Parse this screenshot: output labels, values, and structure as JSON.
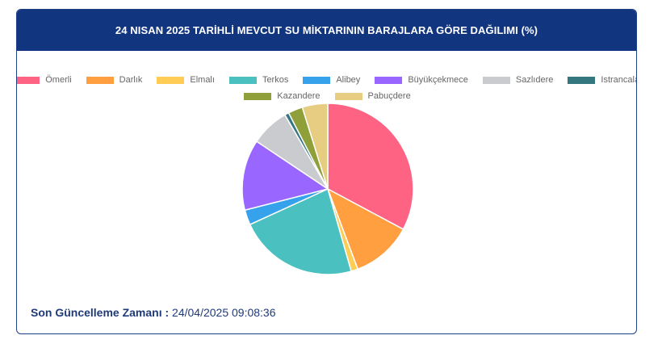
{
  "card": {
    "title": "24 NISAN 2025 TARİHLİ MEVCUT SU MİKTARININ BARAJLARA GÖRE DAĞILIMI (%)"
  },
  "chart_data": {
    "type": "pie",
    "title": "24 NISAN 2025 TARİHLİ MEVCUT SU MİKTARININ BARAJLARA GÖRE DAĞILIMI (%)",
    "legend_position": "top",
    "categories": [
      "Ömerli",
      "Darlık",
      "Elmalı",
      "Terkos",
      "Alibey",
      "Büyükçekmece",
      "Sazlıdere",
      "Istrancalar",
      "Kazandere",
      "Pabuçdere"
    ],
    "values": [
      33.4,
      11.7,
      1.3,
      23.0,
      2.9,
      13.6,
      7.4,
      0.8,
      2.8,
      4.9
    ],
    "colors": [
      "#ff6384",
      "#ff9f40",
      "#ffcd56",
      "#4bc0c0",
      "#36a2eb",
      "#9966ff",
      "#c9cbcf",
      "#35777f",
      "#8f9f3a",
      "#e6cd82"
    ]
  },
  "footer": {
    "label": "Son Güncelleme Zamanı :",
    "value": "24/04/2025 09:08:36"
  }
}
